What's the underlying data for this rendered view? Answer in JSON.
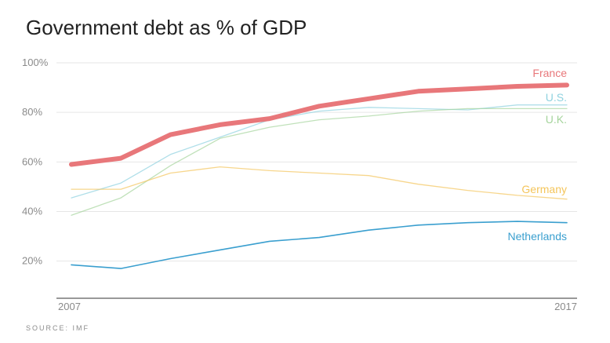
{
  "title": "Government debt as % of GDP",
  "source": "SOURCE: IMF",
  "chart_data": {
    "type": "line",
    "title": "Government debt as % of GDP",
    "xlabel": "",
    "ylabel": "",
    "x": [
      2007,
      2008,
      2009,
      2010,
      2011,
      2012,
      2013,
      2014,
      2015,
      2016,
      2017
    ],
    "x_tick_labels": [
      "2007",
      "2017"
    ],
    "y_ticks": [
      20,
      40,
      60,
      80,
      100
    ],
    "y_tick_labels": [
      "20%",
      "40%",
      "60%",
      "80%",
      "100%"
    ],
    "ylim": [
      5,
      100
    ],
    "grid": true,
    "series": [
      {
        "name": "France",
        "color": "#e8777a",
        "emphasis": true,
        "values": [
          59,
          61.5,
          71,
          75,
          77.5,
          82.5,
          85.5,
          88.5,
          89.5,
          90.5,
          91
        ]
      },
      {
        "name": "U.S.",
        "color": "#8fd2df",
        "values": [
          45.5,
          51.5,
          63,
          70,
          77,
          80.5,
          82,
          81.5,
          81,
          83,
          83
        ]
      },
      {
        "name": "U.K.",
        "color": "#a5d49c",
        "values": [
          38.5,
          45.5,
          58.5,
          69.5,
          74,
          77,
          78.5,
          80.5,
          81.5,
          81.5,
          81.5
        ]
      },
      {
        "name": "Germany",
        "color": "#f4c55b",
        "values": [
          49,
          49,
          55.5,
          58,
          56.5,
          55.5,
          54.5,
          51,
          48.5,
          46.5,
          45
        ]
      },
      {
        "name": "Netherlands",
        "color": "#3a9fcf",
        "values": [
          18.5,
          17,
          21,
          24.5,
          28,
          29.5,
          32.5,
          34.5,
          35.5,
          36,
          35.5
        ]
      }
    ]
  }
}
